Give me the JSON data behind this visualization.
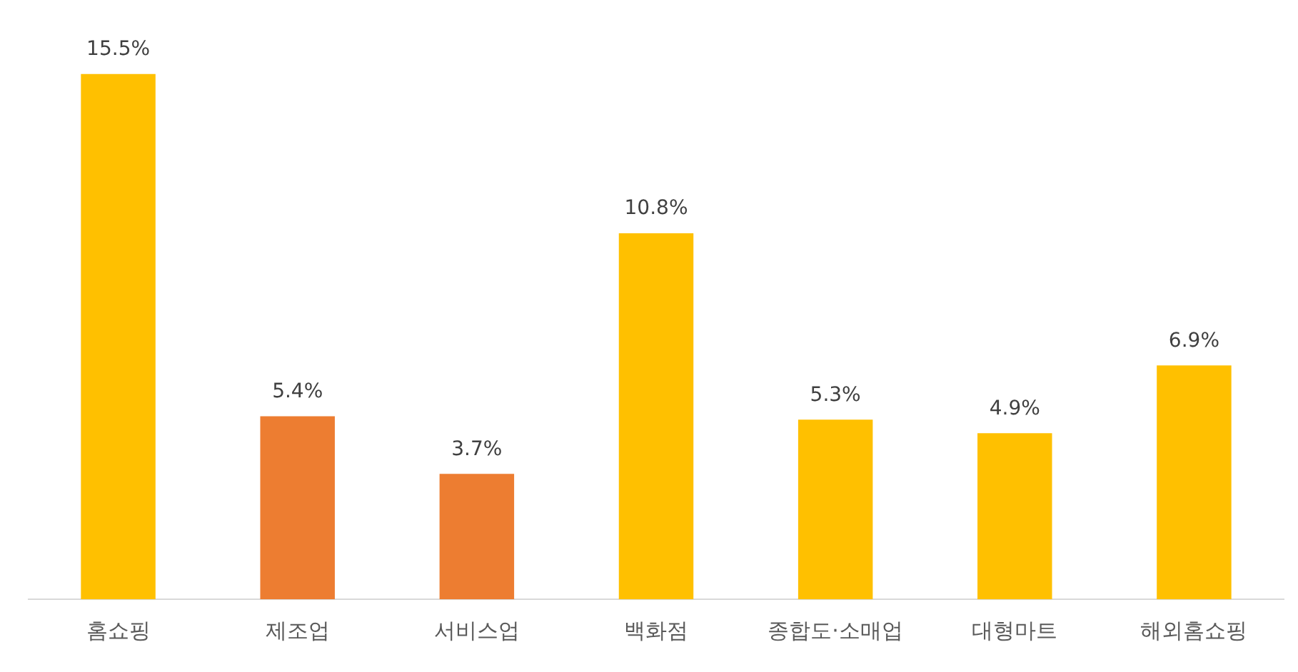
{
  "chart_data": {
    "type": "bar",
    "categories": [
      "홈쇼핑",
      "제조업",
      "서비스업",
      "백화점",
      "종합도·소매업",
      "대형마트",
      "해외홈쇼핑"
    ],
    "values": [
      15.5,
      5.4,
      3.7,
      10.8,
      5.3,
      4.9,
      6.9
    ],
    "colors": [
      "#ffc000",
      "#ed7d31",
      "#ed7d31",
      "#ffc000",
      "#ffc000",
      "#ffc000",
      "#ffc000"
    ],
    "value_labels": [
      "15.5%",
      "5.4%",
      "3.7%",
      "10.8%",
      "5.3%",
      "4.9%",
      "6.9%"
    ],
    "grid": false,
    "legend": false
  }
}
